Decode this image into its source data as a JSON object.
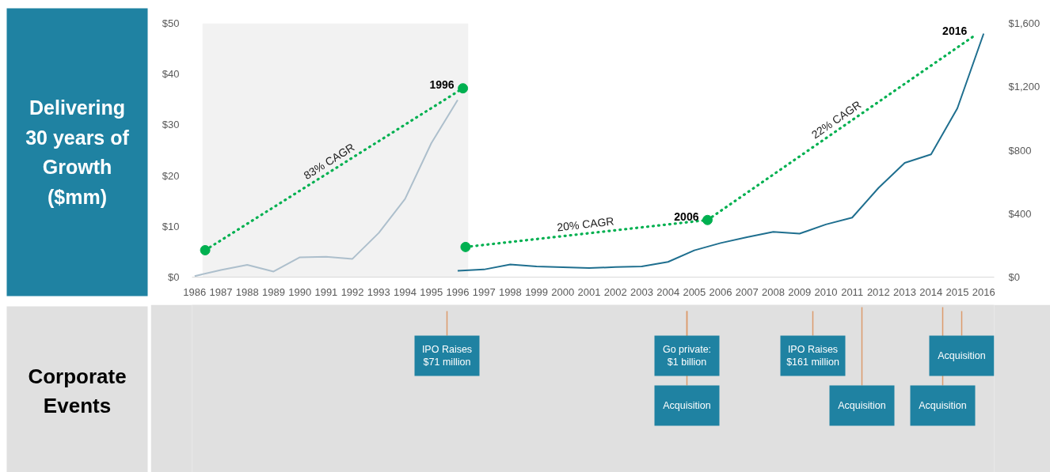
{
  "chart_data": {
    "type": "line",
    "title": "Delivering 30 years of Growth ($mm)",
    "annotations": [
      "Corporate Events",
      "IPO Raises $71 million",
      "Go private: $1 billion",
      "Acquisition",
      "IPO Raises $161 million",
      "Acquisition",
      "Acquisition",
      "Acquisition",
      {
        "text": "1996",
        "x": 1996.2,
        "y": 37.2
      },
      {
        "text": "2006",
        "x": 2005.5,
        "y": 11.2
      },
      {
        "text": "2016",
        "x": 2015.7,
        "y": 47.8
      }
    ],
    "xlim": [
      1985.9,
      2016.4
    ],
    "xticks": [
      1986,
      1987,
      1988,
      1989,
      1990,
      1991,
      1992,
      1993,
      1994,
      1995,
      1996,
      1997,
      1998,
      1999,
      2000,
      2001,
      2002,
      2003,
      2004,
      2005,
      2006,
      2007,
      2008,
      2009,
      2010,
      2011,
      2012,
      2013,
      2014,
      2015,
      2016
    ],
    "ylim": [
      0,
      50
    ],
    "yticks": [
      {
        "value": 0,
        "label": "$0"
      },
      {
        "value": 10,
        "label": "$10"
      },
      {
        "value": 20,
        "label": "$20"
      },
      {
        "value": 30,
        "label": "$30"
      },
      {
        "value": 40,
        "label": "$40"
      },
      {
        "value": 50,
        "label": "$50"
      }
    ],
    "y2lim": [
      0,
      1600
    ],
    "y2ticks": [
      {
        "value": 0,
        "label": "$0"
      },
      {
        "value": 400,
        "label": "$400"
      },
      {
        "value": 800,
        "label": "$800"
      },
      {
        "value": 1200,
        "label": "$1,200"
      },
      {
        "value": 1600,
        "label": "$1,600"
      }
    ],
    "bands": [
      {
        "axis": "x",
        "from": 1986.3,
        "to": 1996.4,
        "color": "#f2f2f2"
      }
    ],
    "series": [
      {
        "color": "#adbfcc",
        "x": [
          1986,
          1987,
          1988,
          1989,
          1990,
          1991,
          1992,
          1993,
          1994,
          1995,
          1996
        ],
        "values": [
          0.2,
          1.4,
          2.4,
          1.1,
          3.9,
          4.0,
          3.6,
          8.7,
          15.4,
          26.4,
          34.9
        ]
      },
      {
        "color": "#1f6f8f",
        "axis": "y2",
        "x": [
          1996,
          1997,
          1998,
          1999,
          2000,
          2001,
          2002,
          2003,
          2004,
          2005,
          2006,
          2007,
          2008,
          2009,
          2010,
          2011,
          2012,
          2013,
          2014,
          2015,
          2016
        ],
        "values": [
          40,
          48,
          80,
          67,
          62,
          57,
          63,
          67,
          96,
          169,
          215,
          252,
          285,
          274,
          332,
          375,
          562,
          720,
          774,
          1064,
          1535
        ]
      },
      {
        "name": "83% CAGR",
        "type": "line",
        "color": "#00b050",
        "line_style": "dotted",
        "marker": "circle",
        "x": [
          1986.4,
          1996.2
        ],
        "values": [
          5.3,
          37.2
        ]
      },
      {
        "name": "20% CAGR",
        "type": "line",
        "color": "#00b050",
        "line_style": "dotted",
        "marker": "circle",
        "axis": "y2",
        "x": [
          1996.3,
          2005.5
        ],
        "values": [
          190,
          360
        ]
      },
      {
        "name": "22% CAGR",
        "type": "line",
        "color": "#00b050",
        "line_style": "dotted",
        "axis": "y2",
        "x": [
          2005.5,
          2015.7
        ],
        "values": [
          360,
          1528
        ]
      }
    ]
  }
}
